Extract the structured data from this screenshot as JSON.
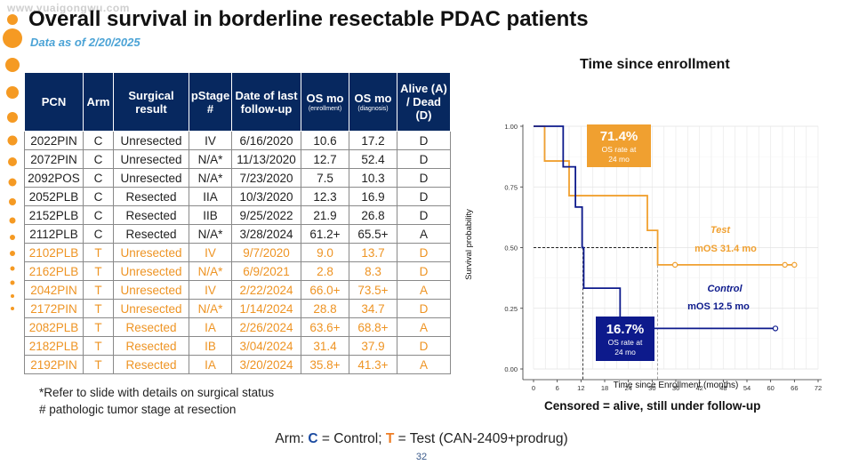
{
  "watermark": "www.yuaigongwu.com",
  "title": "Overall survival in borderline resectable PDAC patients",
  "subtitle": "Data as of 2/20/2025",
  "table": {
    "headers": [
      {
        "main": "PCN",
        "sub": ""
      },
      {
        "main": "Arm",
        "sub": ""
      },
      {
        "main": "Surgical result",
        "sub": ""
      },
      {
        "main": "pStage #",
        "sub": ""
      },
      {
        "main": "Date of last follow-up",
        "sub": ""
      },
      {
        "main": "OS mo",
        "sub": "(enrollment)"
      },
      {
        "main": "OS mo",
        "sub": "(diagnosis)"
      },
      {
        "main": "Alive (A) / Dead (D)",
        "sub": ""
      }
    ],
    "rows": [
      {
        "arm_group": "control",
        "cells": [
          "2022PIN",
          "C",
          "Unresected",
          "IV",
          "6/16/2020",
          "10.6",
          "17.2",
          "D"
        ]
      },
      {
        "arm_group": "control",
        "cells": [
          "2072PIN",
          "C",
          "Unresected",
          "N/A*",
          "11/13/2020",
          "12.7",
          "52.4",
          "D"
        ]
      },
      {
        "arm_group": "control",
        "cells": [
          "2092POS",
          "C",
          "Unresected",
          "N/A*",
          "7/23/2020",
          "7.5",
          "10.3",
          "D"
        ]
      },
      {
        "arm_group": "control",
        "cells": [
          "2052PLB",
          "C",
          "Resected",
          "IIA",
          "10/3/2020",
          "12.3",
          "16.9",
          "D"
        ]
      },
      {
        "arm_group": "control",
        "cells": [
          "2152PLB",
          "C",
          "Resected",
          "IIB",
          "9/25/2022",
          "21.9",
          "26.8",
          "D"
        ]
      },
      {
        "arm_group": "control",
        "cells": [
          "2112PLB",
          "C",
          "Resected",
          "N/A*",
          "3/28/2024",
          "61.2+",
          "65.5+",
          "A"
        ]
      },
      {
        "arm_group": "test",
        "cells": [
          "2102PLB",
          "T",
          "Unresected",
          "IV",
          "9/7/2020",
          "9.0",
          "13.7",
          "D"
        ]
      },
      {
        "arm_group": "test",
        "cells": [
          "2162PLB",
          "T",
          "Unresected",
          "N/A*",
          "6/9/2021",
          "2.8",
          "8.3",
          "D"
        ]
      },
      {
        "arm_group": "test",
        "cells": [
          "2042PIN",
          "T",
          "Unresected",
          "IV",
          "2/22/2024",
          "66.0+",
          "73.5+",
          "A"
        ]
      },
      {
        "arm_group": "test",
        "cells": [
          "2172PIN",
          "T",
          "Unresected",
          "N/A*",
          "1/14/2024",
          "28.8",
          "34.7",
          "D"
        ]
      },
      {
        "arm_group": "test",
        "cells": [
          "2082PLB",
          "T",
          "Resected",
          "IA",
          "2/26/2024",
          "63.6+",
          "68.8+",
          "A"
        ]
      },
      {
        "arm_group": "test",
        "cells": [
          "2182PLB",
          "T",
          "Resected",
          "IB",
          "3/04/2024",
          "31.4",
          "37.9",
          "D"
        ]
      },
      {
        "arm_group": "test",
        "cells": [
          "2192PIN",
          "T",
          "Resected",
          "IA",
          "3/20/2024",
          "35.8+",
          "41.3+",
          "A"
        ]
      }
    ]
  },
  "footnotes": [
    "*Refer to slide with details on surgical status",
    "# pathologic tumor stage at resection"
  ],
  "colors": {
    "header_bg": "#07285f",
    "test": "#f0a030",
    "test_text": "#ee9424",
    "control": "#0d1a8c",
    "test_box": "#f0a030",
    "control_box": "#0d1a8c",
    "accent_blue": "#4ba3d6",
    "dots": "#f59a23"
  },
  "chart_data": {
    "type": "line",
    "subtype": "kaplan-meier",
    "title": "Time since enrollment",
    "xlabel": "Time since Enrollment (months)",
    "ylabel": "Survival probability",
    "xlim": [
      0,
      72
    ],
    "ylim": [
      0,
      1
    ],
    "x_ticks": [
      0,
      3,
      6,
      9,
      12,
      15,
      18,
      21,
      24,
      27,
      30,
      33,
      36,
      39,
      42,
      45,
      48,
      51,
      54,
      57,
      60,
      63,
      66,
      69,
      72
    ],
    "x_tick_labels": [
      "0",
      "6",
      "12",
      "18",
      "24",
      "30",
      "36",
      "42",
      "48",
      "54",
      "60",
      "66",
      "72"
    ],
    "y_ticks": [
      0,
      0.25,
      0.5,
      0.75,
      1.0
    ],
    "y_tick_labels": [
      "0.00",
      "0.25",
      "0.50",
      "0.75",
      "1.00"
    ],
    "grid": true,
    "series": [
      {
        "name": "Test",
        "key": "test",
        "steps": [
          [
            0,
            1.0
          ],
          [
            2.8,
            0.857
          ],
          [
            9.0,
            0.714
          ],
          [
            28.8,
            0.571
          ],
          [
            31.4,
            0.429
          ]
        ],
        "end_x": 66.0,
        "censor_x": [
          35.8,
          63.6,
          66.0
        ],
        "censor_y": 0.429
      },
      {
        "name": "Control",
        "key": "control",
        "steps": [
          [
            0,
            1.0
          ],
          [
            7.5,
            0.833
          ],
          [
            10.6,
            0.667
          ],
          [
            12.3,
            0.5
          ],
          [
            12.7,
            0.333
          ],
          [
            21.9,
            0.167
          ]
        ],
        "end_x": 61.2,
        "censor_x": [
          61.2
        ],
        "censor_y": 0.167
      }
    ],
    "median_lines": [
      {
        "key": "test",
        "x": 31.4,
        "y": 0.5
      },
      {
        "key": "control",
        "x": 12.5,
        "y": 0.5
      }
    ],
    "annotations": {
      "test_box": {
        "value": "71.4%",
        "caption_line1": "OS rate at",
        "caption_line2": "24 mo"
      },
      "control_box": {
        "value": "16.7%",
        "caption_line1": "OS rate at",
        "caption_line2": "24 mo"
      },
      "test_label": "Test",
      "test_median": "mOS 31.4 mo",
      "control_label": "Control",
      "control_median": "mOS 12.5 mo"
    }
  },
  "censored_note": "Censored = alive, still under follow-up",
  "legend": {
    "prefix": "Arm: ",
    "c_letter": "C",
    "c_text": " = Control; ",
    "t_letter": "T",
    "t_text": " = Test (CAN-2409+prodrug)"
  },
  "page_number": "32"
}
